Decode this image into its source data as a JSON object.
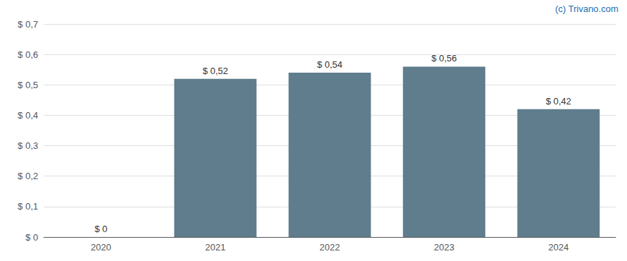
{
  "chart_data": {
    "type": "bar",
    "categories": [
      "2020",
      "2021",
      "2022",
      "2023",
      "2024"
    ],
    "values": [
      0.0,
      0.52,
      0.54,
      0.56,
      0.42
    ],
    "value_labels": [
      "$ 0",
      "$ 0,52",
      "$ 0,54",
      "$ 0,56",
      "$ 0,42"
    ],
    "data_labels": true,
    "color": "#5f7d8c",
    "ylim": [
      0,
      0.7
    ],
    "yticks": [
      {
        "value": 0.0,
        "label": "$ 0"
      },
      {
        "value": 0.1,
        "label": "$ 0,1"
      },
      {
        "value": 0.2,
        "label": "$ 0,2"
      },
      {
        "value": 0.3,
        "label": "$ 0,3"
      },
      {
        "value": 0.4,
        "label": "$ 0,4"
      },
      {
        "value": 0.5,
        "label": "$ 0,5"
      },
      {
        "value": 0.6,
        "label": "$ 0,6"
      },
      {
        "value": 0.7,
        "label": "$ 0,7"
      }
    ],
    "grid": true,
    "annotations": [
      "(c) Trivano.com"
    ]
  }
}
